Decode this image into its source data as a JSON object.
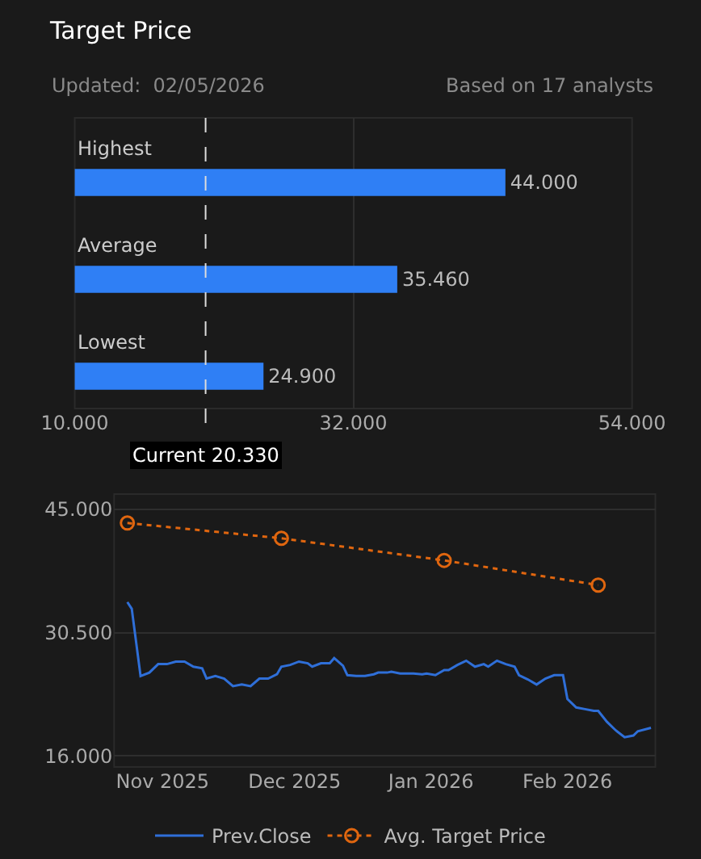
{
  "chart_data": [
    {
      "type": "bar",
      "title": "Target Price",
      "orientation": "horizontal",
      "annotations": [
        "Updated:  02/05/2026",
        "Based on 17 analysts"
      ],
      "categories": [
        "Highest",
        "Average",
        "Lowest"
      ],
      "values": [
        44.0,
        35.46,
        24.9
      ],
      "color": "#2f7ff5",
      "value_labels": [
        "44.000",
        "35.460",
        "24.900"
      ],
      "xlim": [
        10,
        54
      ],
      "xticks": [
        {
          "value": 10,
          "label": "10.000"
        },
        {
          "value": 32,
          "label": "32.000"
        },
        {
          "value": 54,
          "label": "54.000"
        }
      ],
      "grid": "x",
      "ref_lines": [
        {
          "axis": "x",
          "value": 20.33,
          "label": "Current 20.330",
          "color": "#dddddd",
          "line_style": "dashed"
        }
      ]
    },
    {
      "type": "line",
      "series": [
        {
          "name": "Prev.Close",
          "color": "#2f6fd8",
          "marker": "none",
          "line_style": "solid",
          "x": [
            "2025-10-24",
            "2025-10-25",
            "2025-10-27",
            "2025-10-29",
            "2025-10-31",
            "2025-11-02",
            "2025-11-04",
            "2025-11-06",
            "2025-11-08",
            "2025-11-10",
            "2025-11-11",
            "2025-11-13",
            "2025-11-15",
            "2025-11-17",
            "2025-11-19",
            "2025-11-21",
            "2025-11-23",
            "2025-11-25",
            "2025-11-27",
            "2025-11-28",
            "2025-11-30",
            "2025-12-02",
            "2025-12-04",
            "2025-12-05",
            "2025-12-07",
            "2025-12-09",
            "2025-12-10",
            "2025-12-12",
            "2025-12-13",
            "2025-12-15",
            "2025-12-17",
            "2025-12-19",
            "2025-12-20",
            "2025-12-22",
            "2025-12-23",
            "2025-12-25",
            "2025-12-27",
            "2025-12-28",
            "2025-12-30",
            "2025-12-31",
            "2026-01-02",
            "2026-01-04",
            "2026-01-05",
            "2026-01-07",
            "2026-01-09",
            "2026-01-11",
            "2026-01-13",
            "2026-01-14",
            "2026-01-16",
            "2026-01-18",
            "2026-01-20",
            "2026-01-21",
            "2026-01-23",
            "2026-01-25",
            "2026-01-27",
            "2026-01-29",
            "2026-01-31",
            "2026-02-01",
            "2026-02-03",
            "2026-02-05",
            "2026-02-07",
            "2026-02-08",
            "2026-02-10",
            "2026-02-12",
            "2026-02-14",
            "2026-02-16",
            "2026-02-17",
            "2026-02-20"
          ],
          "values": [
            34.1,
            33.3,
            25.4,
            25.8,
            26.8,
            26.8,
            27.1,
            27.1,
            26.5,
            26.3,
            25.1,
            25.4,
            25.1,
            24.2,
            24.4,
            24.2,
            25.1,
            25.1,
            25.6,
            26.5,
            26.7,
            27.1,
            26.9,
            26.5,
            26.9,
            26.9,
            27.5,
            26.6,
            25.5,
            25.4,
            25.4,
            25.6,
            25.8,
            25.8,
            25.9,
            25.7,
            25.7,
            25.7,
            25.6,
            25.7,
            25.5,
            26.1,
            26.1,
            26.7,
            27.2,
            26.5,
            26.8,
            26.5,
            27.2,
            26.8,
            26.5,
            25.5,
            25.0,
            24.4,
            25.1,
            25.5,
            25.5,
            22.7,
            21.7,
            21.5,
            21.3,
            21.3,
            20.0,
            19.0,
            18.2,
            18.4,
            18.9,
            19.3
          ]
        },
        {
          "name": "Avg. Target Price",
          "color": "#e0660f",
          "marker": "circle",
          "line_style": "dotted",
          "x": [
            "2025-10-24",
            "2025-11-28",
            "2026-01-04",
            "2026-02-08"
          ],
          "values": [
            43.4,
            41.6,
            39.0,
            36.1
          ]
        }
      ],
      "xlim": [
        "2025-10-21",
        "2026-02-21"
      ],
      "xticks": [
        {
          "value": "2025-11-01",
          "label": "Nov 2025"
        },
        {
          "value": "2025-12-01",
          "label": "Dec 2025"
        },
        {
          "value": "2026-01-01",
          "label": "Jan 2026"
        },
        {
          "value": "2026-02-01",
          "label": "Feb 2026"
        }
      ],
      "ylim": [
        14.7,
        46.8
      ],
      "yticks": [
        {
          "value": 16,
          "label": "16.000"
        },
        {
          "value": 30.5,
          "label": "30.500"
        },
        {
          "value": 45,
          "label": "45.000"
        }
      ],
      "grid": "y",
      "legend": "bottom"
    }
  ]
}
